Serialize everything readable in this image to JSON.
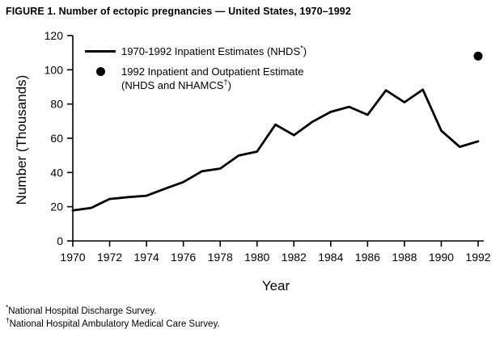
{
  "title": "FIGURE 1. Number of ectopic pregnancies — United States, 1970–1992",
  "axis": {
    "x_label": "Year",
    "y_label": "Number (Thousands)"
  },
  "legend": {
    "item1": {
      "pre": "1970-1992 Inpatient Estimates (NHDS",
      "sup": "*",
      "post": ")"
    },
    "item2": {
      "line1": "1992 Inpatient and Outpatient Estimate",
      "line2_pre": "(NHDS and NHAMCS",
      "line2_sup": "†",
      "line2_post": ")"
    }
  },
  "footnotes": [
    {
      "marker": "*",
      "text": "National Hospital Discharge Survey."
    },
    {
      "marker": "†",
      "text": "National Hospital Ambulatory Medical Care Survey."
    }
  ],
  "chart_data": {
    "type": "line",
    "title": "FIGURE 1. Number of ectopic pregnancies — United States, 1970–1992",
    "xlabel": "Year",
    "ylabel": "Number (Thousands)",
    "xlim": [
      1970,
      1992
    ],
    "ylim": [
      0,
      120
    ],
    "xticks": [
      1970,
      1972,
      1974,
      1976,
      1978,
      1980,
      1982,
      1984,
      1986,
      1988,
      1990,
      1992
    ],
    "yticks": [
      0,
      20,
      40,
      60,
      80,
      100,
      120
    ],
    "grid": false,
    "legend_position": "inside top-left",
    "series": [
      {
        "name": "1970-1992 Inpatient Estimates (NHDS*)",
        "type": "line",
        "color": "#000000",
        "x": [
          1970,
          1971,
          1972,
          1973,
          1974,
          1975,
          1976,
          1977,
          1978,
          1979,
          1980,
          1981,
          1982,
          1983,
          1984,
          1985,
          1986,
          1987,
          1988,
          1989,
          1990,
          1991,
          1992
        ],
        "values": [
          17.8,
          19.3,
          24.5,
          25.6,
          26.4,
          30.5,
          34.4,
          40.7,
          42.3,
          49.9,
          52.2,
          68.0,
          61.8,
          69.6,
          75.4,
          78.4,
          73.7,
          88.0,
          81.0,
          88.4,
          64.4,
          55.0,
          58.2
        ]
      },
      {
        "name": "1992 Inpatient and Outpatient Estimate (NHDS and NHAMCS†)",
        "type": "point",
        "color": "#000000",
        "x": [
          1992
        ],
        "values": [
          108.0
        ]
      }
    ]
  }
}
